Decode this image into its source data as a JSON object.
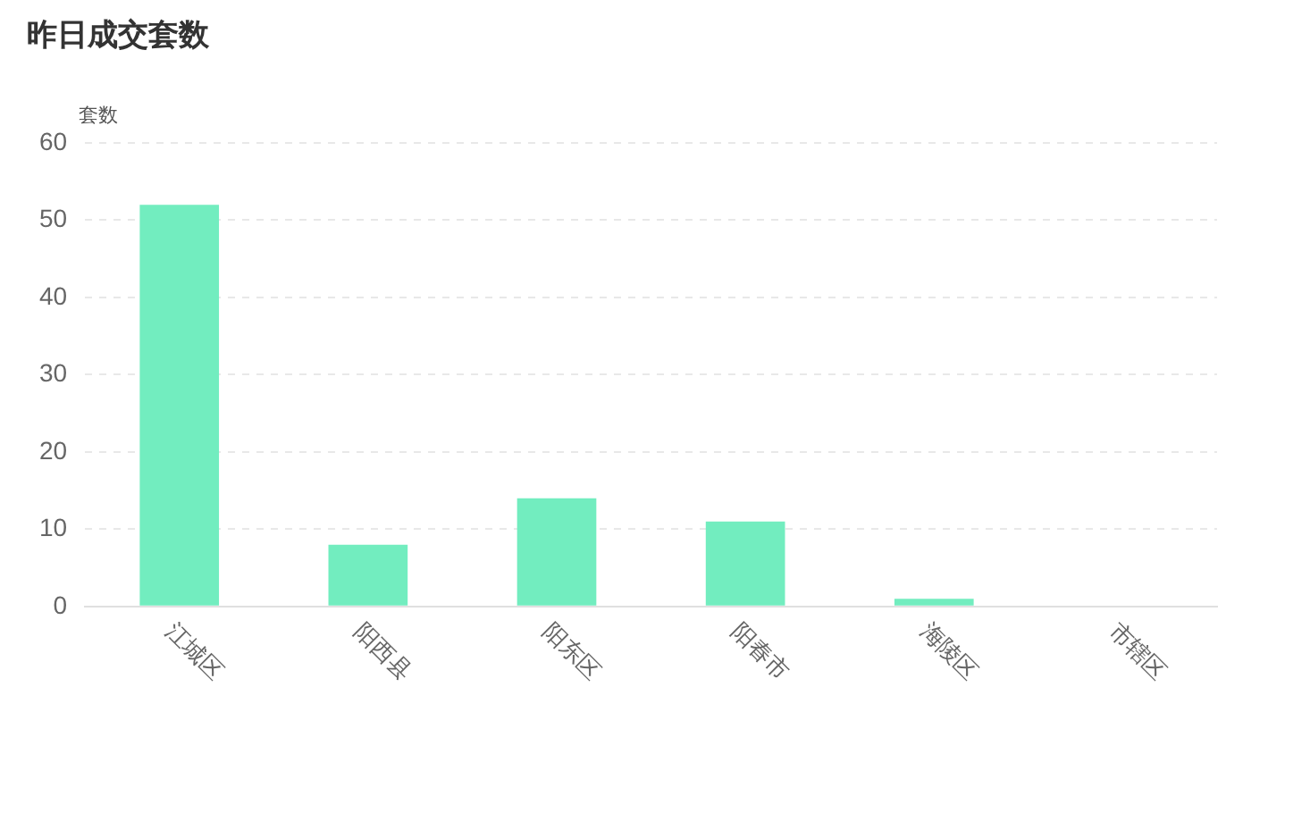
{
  "chart_data": {
    "type": "bar",
    "title": "昨日成交套数",
    "ylabel": "套数",
    "categories": [
      "江城区",
      "阳西县",
      "阳东区",
      "阳春市",
      "海陵区",
      "市辖区"
    ],
    "values": [
      52,
      8,
      14,
      11,
      1,
      0
    ],
    "color": "#72edbf",
    "ylim": [
      0,
      60
    ],
    "yticks": [
      0,
      10,
      20,
      30,
      40,
      50,
      60
    ],
    "grid": "y",
    "legend": false
  }
}
